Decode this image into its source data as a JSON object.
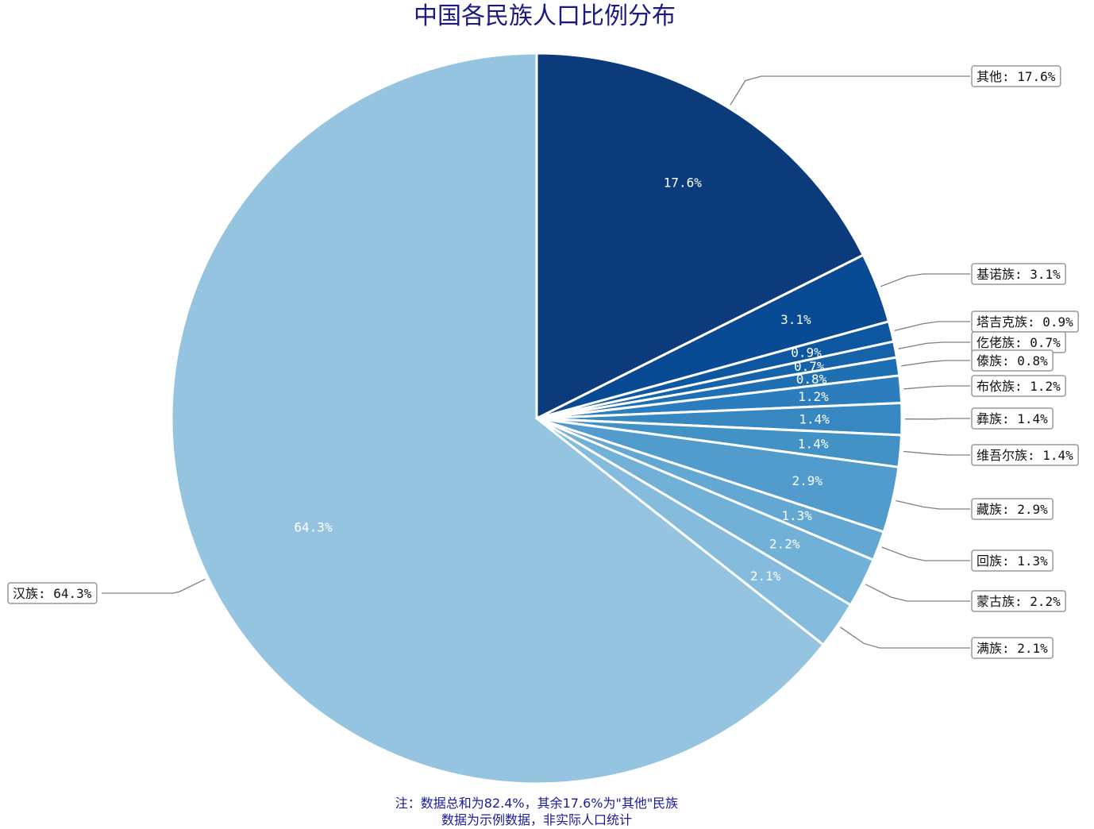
{
  "chart_data": {
    "type": "pie",
    "title": "中国各民族人口比例分布",
    "categories": [
      "其他",
      "基诺族",
      "塔吉克族",
      "仡佬族",
      "傣族",
      "布依族",
      "彝族",
      "维吾尔族",
      "藏族",
      "回族",
      "蒙古族",
      "满族",
      "汉族"
    ],
    "values": [
      17.6,
      3.1,
      0.9,
      0.7,
      0.8,
      1.2,
      1.4,
      1.4,
      2.9,
      1.3,
      2.2,
      2.1,
      64.3
    ],
    "value_labels": [
      "17.6%",
      "3.1%",
      "0.9%",
      "0.7%",
      "0.8%",
      "1.2%",
      "1.4%",
      "1.4%",
      "2.9%",
      "1.3%",
      "2.2%",
      "2.1%",
      "64.3%"
    ],
    "outer_labels": [
      "其他: 17.6%",
      "基诺族: 3.1%",
      "塔吉克族: 0.9%",
      "仡佬族: 0.7%",
      "傣族: 0.8%",
      "布依族: 1.2%",
      "彝族: 1.4%",
      "维吾尔族: 1.4%",
      "藏族: 2.9%",
      "回族: 1.3%",
      "蒙古族: 2.2%",
      "满族: 2.1%",
      "汉族: 64.3%"
    ],
    "colors": [
      "#0b3b7b",
      "#084a94",
      "#0d56a0",
      "#1663aa",
      "#1f6fb3",
      "#2c7dbd",
      "#3787c0",
      "#4292c6",
      "#519bcd",
      "#62a8d3",
      "#72b1d7",
      "#85bcdd",
      "#95c4e0"
    ],
    "start_angle": "12 o'clock",
    "direction": "clockwise",
    "legend": "none",
    "footnote": [
      "注：数据总和为82.4%，其余17.6%为\"其他\"民族",
      "数据为示例数据，非实际人口统计"
    ]
  }
}
